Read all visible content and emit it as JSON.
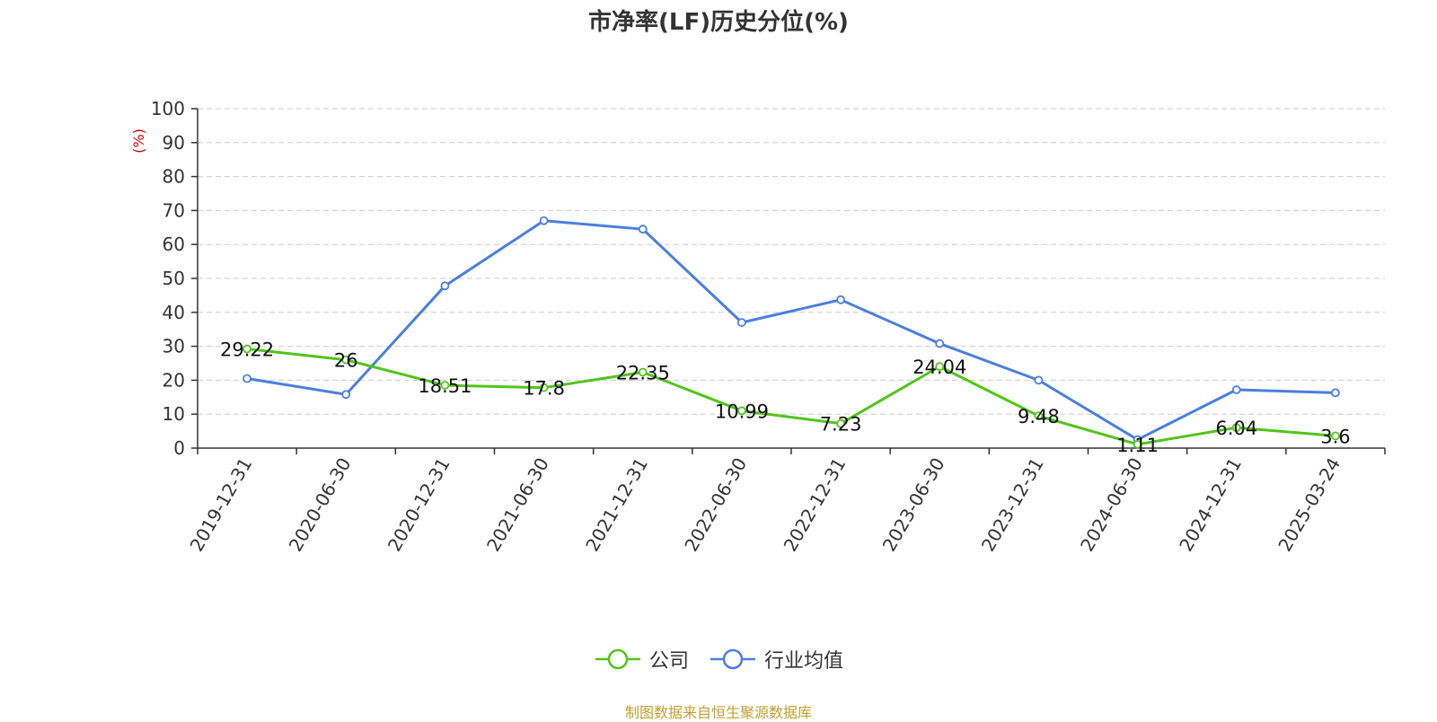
{
  "chart_data": {
    "type": "line",
    "title": "市净率(LF)历史分位(%)",
    "ylabel": "(%)",
    "ylim": [
      0,
      100
    ],
    "yticks": [
      0,
      10,
      20,
      30,
      40,
      50,
      60,
      70,
      80,
      90,
      100
    ],
    "grid": true,
    "legend_position": "bottom",
    "categories": [
      "2019-12-31",
      "2020-06-30",
      "2020-12-31",
      "2021-06-30",
      "2021-12-31",
      "2022-06-30",
      "2022-12-31",
      "2023-06-30",
      "2023-12-31",
      "2024-06-30",
      "2024-12-31",
      "2025-03-24"
    ],
    "series": [
      {
        "name": "公司",
        "color": "#52c41a",
        "values": [
          29.22,
          26,
          18.51,
          17.8,
          22.35,
          10.99,
          7.23,
          24.04,
          9.48,
          1.11,
          6.04,
          3.6
        ],
        "data_labels": [
          "29.22",
          "26",
          "18.51",
          "17.8",
          "22.35",
          "10.99",
          "7.23",
          "24.04",
          "9.48",
          "1.11",
          "6.04",
          "3.6"
        ]
      },
      {
        "name": "行业均值",
        "color": "#4a7fdc",
        "values": [
          20.5,
          15.8,
          47.8,
          67,
          64.5,
          37,
          43.7,
          30.8,
          20,
          2.5,
          17.2,
          16.3
        ]
      }
    ]
  },
  "source_note": "制图数据来自恒生聚源数据库"
}
